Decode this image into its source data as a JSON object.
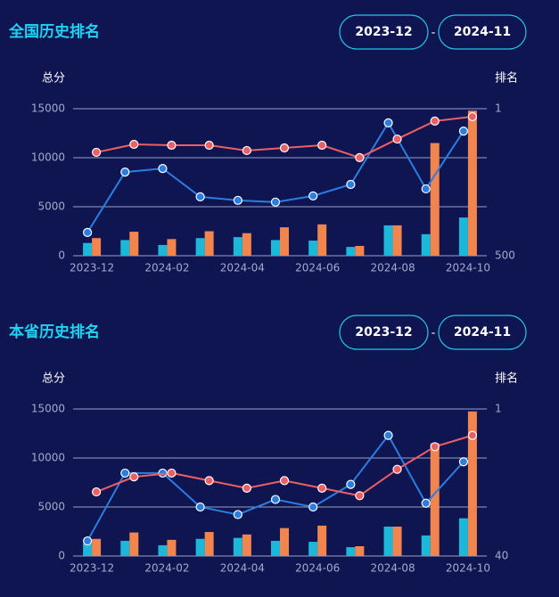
{
  "chart_data": [
    {
      "type": "combo",
      "title": "全国历史排名",
      "date_start": "2023-12",
      "date_separator": "-",
      "date_end": "2024-11",
      "ylabel": "总分",
      "y2label": "排名",
      "categories": [
        "2023-12",
        null,
        "2024-02",
        null,
        "2024-04",
        null,
        "2024-06",
        null,
        "2024-08",
        null,
        "2024-10"
      ],
      "ylim": [
        0,
        15000
      ],
      "yticks": [
        0,
        5000,
        10000,
        15000
      ],
      "y2lim": [
        500,
        1
      ],
      "y2ticks": [
        1,
        500
      ],
      "grid": true,
      "series": [
        {
          "type": "bar",
          "color": "#1bb8da",
          "values": [
            1300,
            1600,
            1100,
            1800,
            1900,
            1600,
            1550,
            900,
            3100,
            2200,
            3900
          ]
        },
        {
          "type": "bar",
          "color": "#f2844e",
          "values": [
            1800,
            2450,
            1700,
            2500,
            2300,
            2900,
            3200,
            1000,
            3100,
            11500,
            14800
          ]
        },
        {
          "type": "line",
          "axis": "y2",
          "color": "#2a7de1",
          "values": [
            421,
            216,
            204,
            300,
            312,
            318,
            297,
            258,
            49,
            273,
            77
          ]
        },
        {
          "type": "line",
          "axis": "y2",
          "color": "#ee5f63",
          "values": [
            149,
            122,
            125,
            125,
            143,
            134,
            125,
            167,
            104,
            43,
            28
          ]
        }
      ]
    },
    {
      "type": "combo",
      "title": "本省历史排名",
      "date_start": "2023-12",
      "date_separator": "-",
      "date_end": "2024-11",
      "ylabel": "总分",
      "y2label": "排名",
      "categories": [
        "2023-12",
        null,
        "2024-02",
        null,
        "2024-04",
        null,
        "2024-06",
        null,
        "2024-08",
        null,
        "2024-10"
      ],
      "ylim": [
        0,
        15000
      ],
      "yticks": [
        0,
        5000,
        10000,
        15000
      ],
      "y2lim": [
        40,
        1
      ],
      "y2ticks": [
        1,
        40
      ],
      "grid": true,
      "series": [
        {
          "type": "bar",
          "color": "#1bb8da",
          "values": [
            1300,
            1550,
            1100,
            1750,
            1850,
            1550,
            1450,
            900,
            3000,
            2100,
            3850
          ]
        },
        {
          "type": "bar",
          "color": "#f2844e",
          "values": [
            1750,
            2400,
            1650,
            2450,
            2200,
            2850,
            3100,
            1000,
            3000,
            11500,
            14750
          ]
        },
        {
          "type": "line",
          "axis": "y2",
          "color": "#2a7de1",
          "values": [
            36,
            18,
            18,
            27,
            29,
            25,
            27,
            21,
            8,
            26,
            15
          ]
        },
        {
          "type": "line",
          "axis": "y2",
          "color": "#ee5f63",
          "values": [
            23,
            19,
            18,
            20,
            22,
            20,
            22,
            24,
            17,
            11,
            8
          ]
        }
      ]
    }
  ]
}
